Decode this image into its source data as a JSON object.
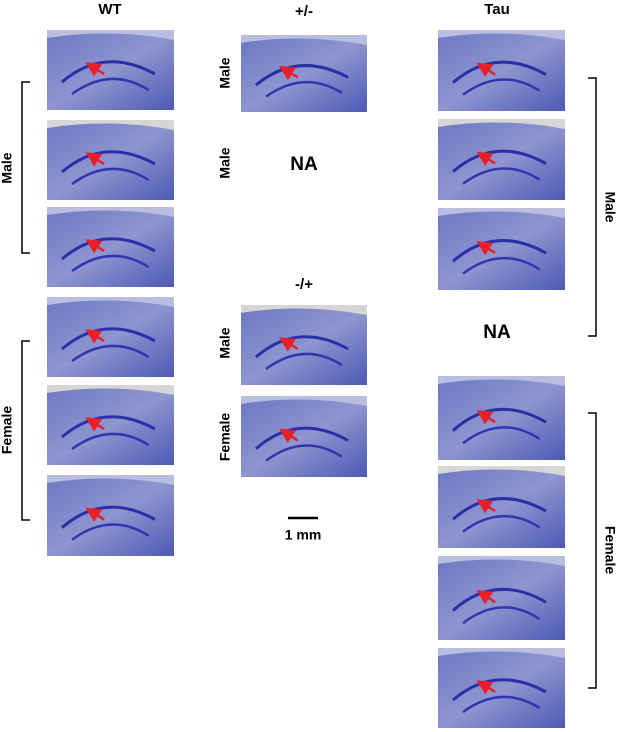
{
  "columns": [
    {
      "title": "WT",
      "groups": [
        {
          "label": "Male"
        },
        {
          "label": "Female"
        }
      ]
    },
    {
      "title": "+/-",
      "rows": [
        {
          "label": "Male"
        },
        {
          "label": "Male",
          "note": "NA"
        }
      ]
    },
    {
      "title": "-/+",
      "rows": [
        {
          "label": "Male"
        },
        {
          "label": "Female"
        }
      ]
    },
    {
      "title": "Tau",
      "groups": [
        {
          "label": "Male"
        },
        {
          "label": "Female"
        }
      ],
      "note": "NA"
    }
  ],
  "scale_bar": "1 mm"
}
